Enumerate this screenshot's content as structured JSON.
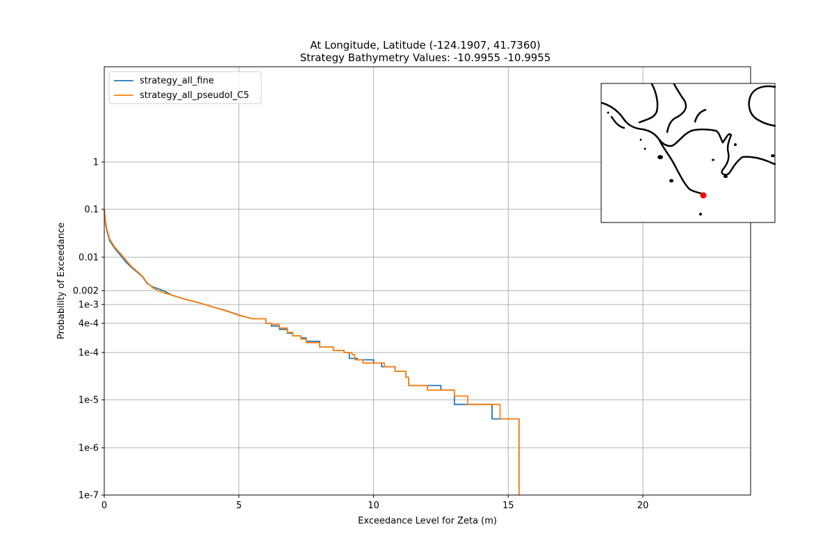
{
  "chart_data": {
    "type": "line",
    "title_lines": [
      "At Longitude, Latitude (-124.1907,  41.7360)",
      "Strategy Bathymetry Values:  -10.9955  -10.9955"
    ],
    "xlabel": "Exceedance Level for Zeta (m)",
    "ylabel": "Probability of Exceedance",
    "xlim": [
      0,
      24
    ],
    "xticks": [
      0,
      5,
      10,
      15,
      20
    ],
    "xtick_labels": [
      "0",
      "5",
      "10",
      "15",
      "20"
    ],
    "y_scale": "log-transformed (nonuniform)",
    "yticks": [
      1,
      0.1,
      0.01,
      0.002,
      0.001,
      0.0004,
      0.0001,
      1e-05,
      1e-06,
      1e-07
    ],
    "ytick_labels": [
      "1",
      "0.1",
      "0.01",
      "0.002",
      "1e-3",
      "4e-4",
      "1e-4",
      "1e-5",
      "1e-6",
      "1e-7"
    ],
    "grid": true,
    "legend_position": "upper-left",
    "series": [
      {
        "name": "strategy_all_fine",
        "color": "#1f77b4",
        "x": [
          0,
          0.05,
          0.1,
          0.2,
          0.4,
          0.6,
          0.8,
          1.0,
          1.2,
          1.4,
          1.6,
          1.8,
          2.0,
          2.2,
          2.5,
          3.0,
          3.5,
          4.0,
          4.5,
          5.0,
          5.5,
          6.0,
          6.2,
          6.5,
          6.8,
          7.0,
          7.3,
          7.5,
          8.0,
          8.5,
          8.9,
          9.1,
          9.4,
          9.6,
          10.0,
          10.3,
          10.8,
          11.2,
          11.3,
          12.2,
          12.5,
          12.7,
          13.0,
          13.5,
          14.2,
          14.4,
          14.7,
          15.4,
          15.4
        ],
        "y": [
          0.1,
          0.05,
          0.035,
          0.022,
          0.015,
          0.011,
          0.008,
          0.0062,
          0.005,
          0.004,
          0.0028,
          0.0024,
          0.0022,
          0.002,
          0.0016,
          0.0013,
          0.0011,
          0.0009,
          0.00075,
          0.0006,
          0.0005,
          0.0004,
          0.00035,
          0.0003,
          0.00025,
          0.00022,
          0.0002,
          0.00017,
          0.00013,
          0.00011,
          0.0001,
          7.5e-05,
          7e-05,
          7e-05,
          6e-05,
          5e-05,
          4e-05,
          3e-05,
          2e-05,
          2e-05,
          1.6e-05,
          1.6e-05,
          8e-06,
          8e-06,
          8e-06,
          4e-06,
          4e-06,
          4e-06,
          1e-07
        ]
      },
      {
        "name": "strategy_all_pseudoI_C5",
        "color": "#ff7f0e",
        "x": [
          0,
          0.05,
          0.1,
          0.2,
          0.4,
          0.6,
          0.8,
          1.0,
          1.2,
          1.4,
          1.6,
          1.8,
          2.0,
          2.2,
          2.5,
          3.0,
          3.5,
          4.0,
          4.5,
          5.0,
          5.5,
          6.0,
          6.2,
          6.5,
          6.8,
          7.0,
          7.3,
          7.5,
          8.0,
          8.5,
          8.9,
          9.2,
          9.3,
          9.6,
          10.0,
          10.4,
          10.8,
          11.2,
          11.3,
          11.7,
          12.0,
          12.5,
          12.7,
          13.0,
          13.5,
          14.2,
          14.5,
          14.7,
          15.4,
          15.4
        ],
        "y": [
          0.1,
          0.055,
          0.038,
          0.024,
          0.016,
          0.012,
          0.0088,
          0.0065,
          0.0052,
          0.0041,
          0.0029,
          0.0023,
          0.002,
          0.0018,
          0.0016,
          0.0013,
          0.0011,
          0.0009,
          0.00074,
          0.00059,
          0.0005,
          0.0004,
          0.00038,
          0.00032,
          0.00026,
          0.00022,
          0.00019,
          0.00016,
          0.00013,
          0.00011,
          0.0001,
          9e-05,
          7e-05,
          6e-05,
          6e-05,
          5e-05,
          4e-05,
          3e-05,
          2e-05,
          2e-05,
          1.6e-05,
          1.6e-05,
          1.6e-05,
          1.2e-05,
          8e-06,
          8e-06,
          8e-06,
          4e-06,
          4e-06,
          1e-07
        ]
      }
    ],
    "inset_map": {
      "location_marker_color": "#ff0000",
      "coastline_color": "#000000"
    }
  }
}
